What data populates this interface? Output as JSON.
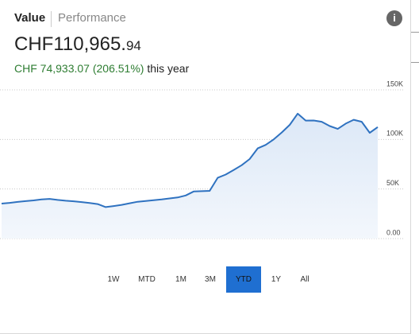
{
  "tabs": [
    "Value",
    "Performance"
  ],
  "value": {
    "main": "CHF110,965.",
    "cents": "94"
  },
  "change": {
    "amount": "CHF 74,933.07 (206.51%)",
    "period": " this year"
  },
  "chart_data": {
    "type": "line",
    "values": [
      35300,
      36000,
      37000,
      37800,
      38500,
      39500,
      40000,
      39000,
      38200,
      37600,
      36800,
      35900,
      34800,
      31800,
      32800,
      34000,
      35600,
      37100,
      37900,
      38700,
      39500,
      40500,
      41500,
      43500,
      47500,
      47800,
      48100,
      61300,
      64600,
      69200,
      74000,
      80200,
      91000,
      94500,
      100000,
      107000,
      114700,
      126000,
      119000,
      119100,
      117800,
      113500,
      110600,
      116000,
      119800,
      117800,
      106700,
      112500
    ],
    "color": "#2f72c0",
    "ylim": [
      0,
      150000
    ],
    "yticks": [
      {
        "value": 0,
        "label": "0.00"
      },
      {
        "value": 50000,
        "label": "50K"
      },
      {
        "value": 100000,
        "label": "100K"
      },
      {
        "value": 150000,
        "label": "150K"
      }
    ],
    "grid": true
  },
  "ranges": [
    "1W",
    "MTD",
    "1M",
    "3M",
    "YTD",
    "1Y",
    "All"
  ],
  "selected_range": "YTD"
}
